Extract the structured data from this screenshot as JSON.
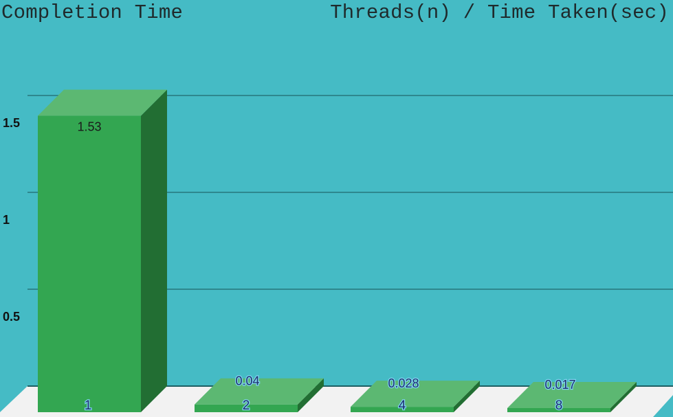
{
  "chart_data": {
    "type": "bar",
    "title": "Completion Time",
    "subtitle": "Threads(n) / Time Taken(sec)",
    "categories": [
      "1",
      "2",
      "4",
      "8"
    ],
    "series": [
      {
        "values": [
          1.53,
          0.04,
          0.028,
          0.017
        ]
      }
    ],
    "value_labels": [
      "1.53",
      "0.04",
      "0.028",
      "0.017"
    ],
    "y_ticks": [
      0.5,
      1,
      1.5
    ],
    "y_tick_labels": [
      "0.5",
      "1",
      "1.5"
    ],
    "ylim": [
      0,
      1.8
    ],
    "grid": true,
    "legend": "none",
    "colors": {
      "background": "#45bbc5",
      "bar_front": "#33a651",
      "bar_top": "#5cb872",
      "bar_side": "#226e33",
      "floor": "#f2f2f2",
      "gridline": "#27767d"
    }
  }
}
